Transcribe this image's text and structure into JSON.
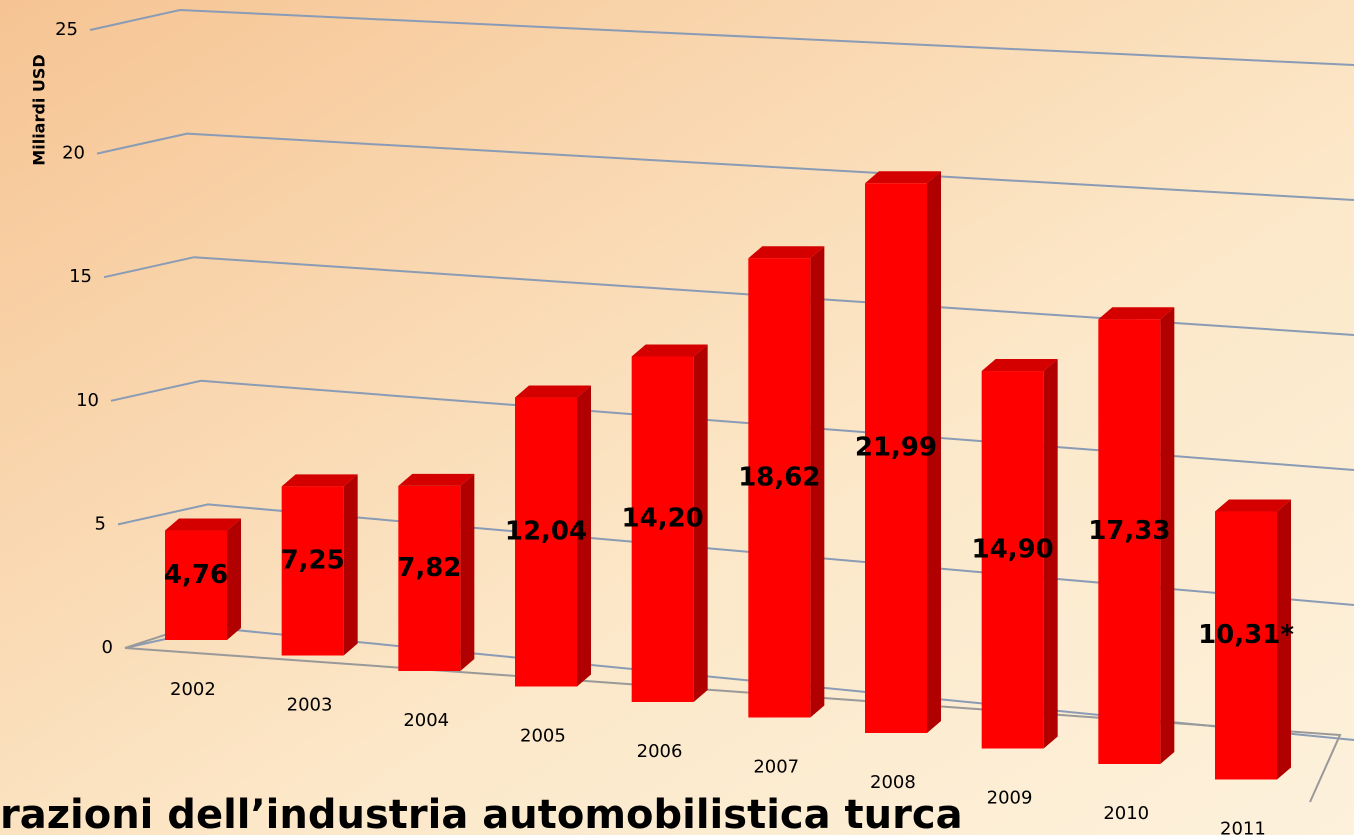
{
  "chart_data": {
    "type": "bar3d",
    "y_axis_label": "Miliardi USD",
    "categories": [
      "2002",
      "2003",
      "2004",
      "2005",
      "2006",
      "2007",
      "2008",
      "2009",
      "2010",
      "2011"
    ],
    "values": [
      4.76,
      7.25,
      7.82,
      12.04,
      14.2,
      18.62,
      21.99,
      14.9,
      17.33,
      10.31
    ],
    "value_labels": [
      "4,76",
      "7,25",
      "7,82",
      "12,04",
      "14,20",
      "18,62",
      "21,99",
      "14,90",
      "17,33",
      "10,31*"
    ],
    "color": "#ff0000",
    "ylim": [
      0,
      25
    ],
    "yticks": [
      0,
      5,
      10,
      15,
      20,
      25
    ],
    "grid": true,
    "caption": "razioni dell’industria automobilistica turca"
  }
}
